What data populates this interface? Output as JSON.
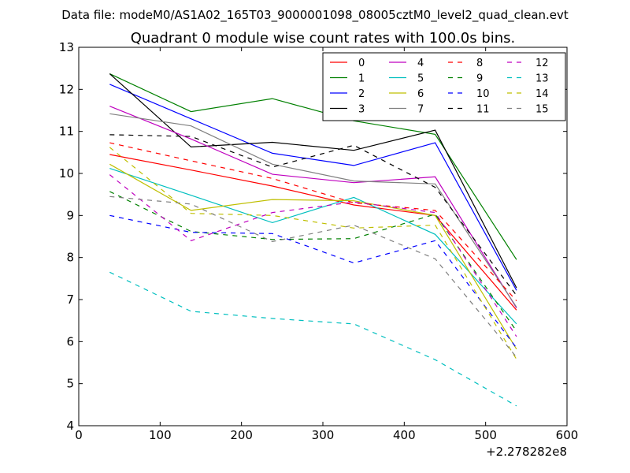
{
  "suptitle": "Data file: modeM0/AS1A02_165T03_9000001098_08005cztM0_level2_quad_clean.evt",
  "chart_data": {
    "type": "line",
    "title": "Quadrant 0 module wise count rates with 100.0s bins.",
    "x_offset_label": "+2.278282e8",
    "xlim": [
      0,
      600
    ],
    "ylim": [
      4,
      13
    ],
    "xticks": [
      0,
      100,
      200,
      300,
      400,
      500,
      600
    ],
    "yticks": [
      4,
      5,
      6,
      7,
      8,
      9,
      10,
      11,
      12,
      13
    ],
    "x": [
      38,
      138,
      238,
      338,
      438,
      538
    ],
    "legend_position": "top-right",
    "series": [
      {
        "name": "0",
        "color": "#ff0000",
        "dash": "solid",
        "values": [
          10.45,
          10.08,
          9.7,
          9.25,
          9.0,
          6.75
        ]
      },
      {
        "name": "1",
        "color": "#008000",
        "dash": "solid",
        "values": [
          12.37,
          11.47,
          11.78,
          11.25,
          10.93,
          7.95
        ]
      },
      {
        "name": "2",
        "color": "#0000ff",
        "dash": "solid",
        "values": [
          12.12,
          11.3,
          10.48,
          10.19,
          10.73,
          7.22
        ]
      },
      {
        "name": "3",
        "color": "#000000",
        "dash": "solid",
        "values": [
          12.37,
          10.63,
          10.74,
          10.55,
          11.03,
          7.28
        ]
      },
      {
        "name": "4",
        "color": "#bf00bf",
        "dash": "solid",
        "values": [
          11.6,
          10.82,
          9.98,
          9.78,
          9.92,
          6.8
        ]
      },
      {
        "name": "5",
        "color": "#00bfbf",
        "dash": "solid",
        "values": [
          10.12,
          9.48,
          8.83,
          9.43,
          8.55,
          6.42
        ]
      },
      {
        "name": "6",
        "color": "#bfbf00",
        "dash": "solid",
        "values": [
          10.22,
          9.12,
          9.38,
          9.35,
          9.0,
          5.82
        ]
      },
      {
        "name": "7",
        "color": "#808080",
        "dash": "solid",
        "values": [
          11.42,
          11.13,
          10.22,
          9.82,
          9.75,
          6.82
        ]
      },
      {
        "name": "8",
        "color": "#ff0000",
        "dash": "dashed",
        "values": [
          10.73,
          10.3,
          9.88,
          9.3,
          9.12,
          6.97
        ]
      },
      {
        "name": "9",
        "color": "#008000",
        "dash": "dashed",
        "values": [
          9.57,
          8.62,
          8.43,
          8.45,
          9.03,
          6.25
        ]
      },
      {
        "name": "10",
        "color": "#0000ff",
        "dash": "dashed",
        "values": [
          9.0,
          8.6,
          8.57,
          7.87,
          8.4,
          5.85
        ]
      },
      {
        "name": "11",
        "color": "#000000",
        "dash": "dashed",
        "values": [
          10.92,
          10.88,
          10.15,
          10.67,
          9.67,
          7.1
        ]
      },
      {
        "name": "12",
        "color": "#bf00bf",
        "dash": "dashed",
        "values": [
          9.97,
          8.4,
          9.07,
          9.32,
          9.07,
          6.12
        ]
      },
      {
        "name": "13",
        "color": "#00bfbf",
        "dash": "dashed",
        "values": [
          7.65,
          6.72,
          6.55,
          6.42,
          5.57,
          4.47
        ]
      },
      {
        "name": "14",
        "color": "#bfbf00",
        "dash": "dashed",
        "values": [
          10.62,
          9.05,
          9.0,
          8.7,
          8.77,
          5.58
        ]
      },
      {
        "name": "15",
        "color": "#808080",
        "dash": "dashed",
        "values": [
          9.45,
          9.27,
          8.38,
          8.77,
          7.97,
          5.63
        ]
      }
    ]
  }
}
